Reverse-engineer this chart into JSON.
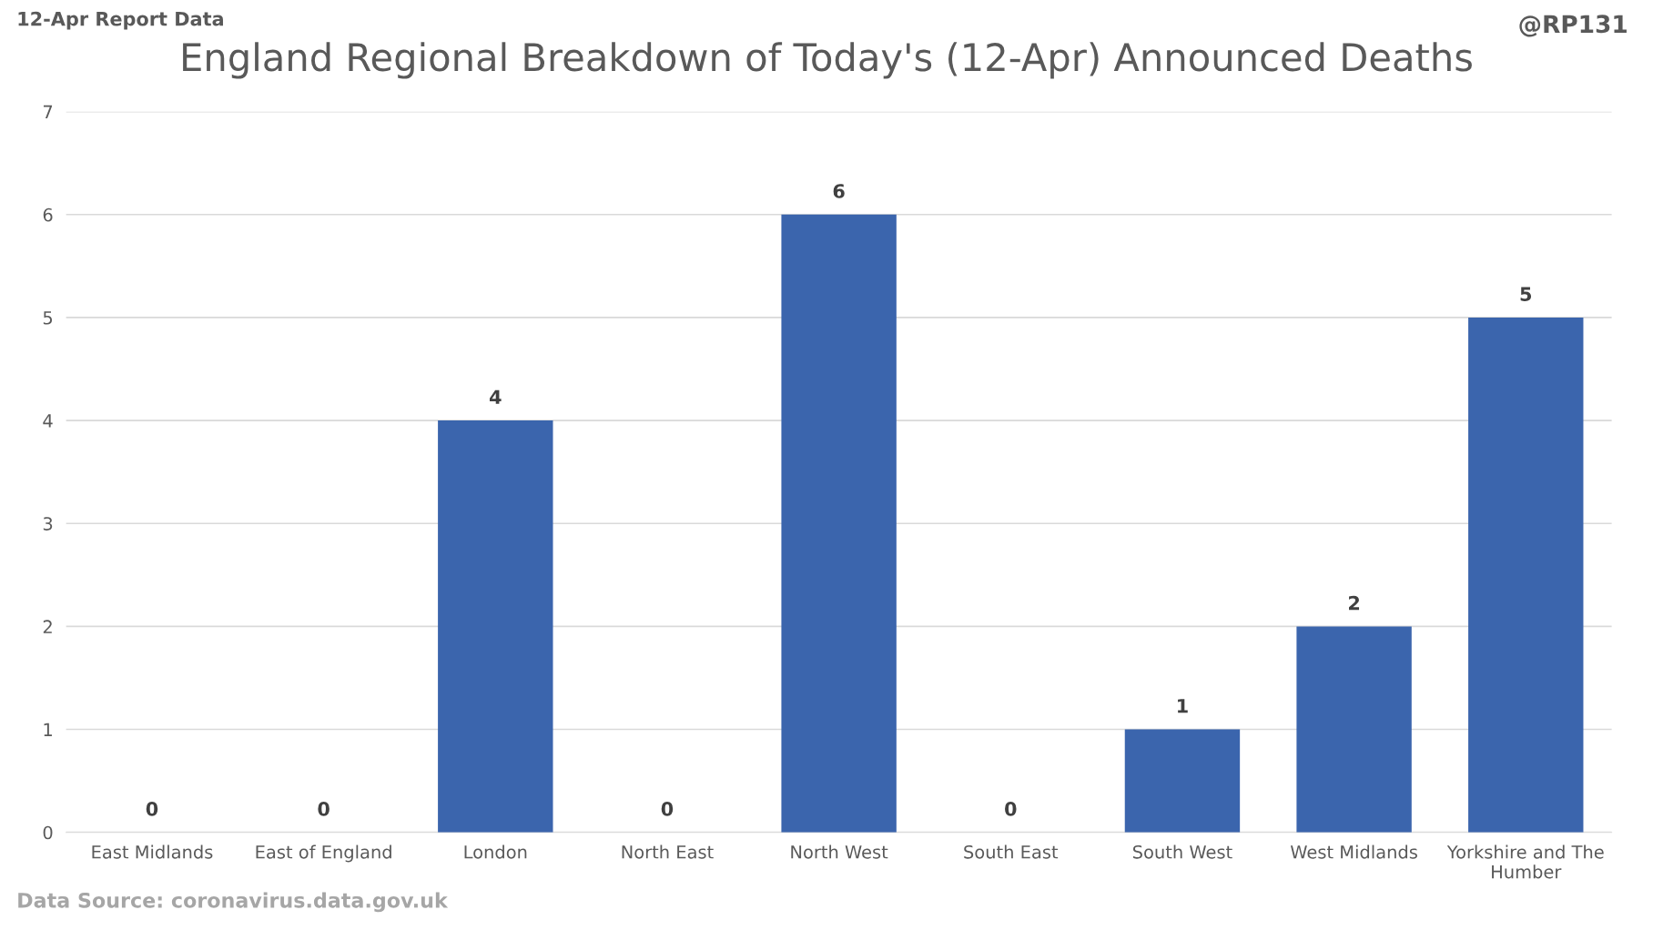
{
  "chart_data": {
    "type": "bar",
    "title": "England Regional Breakdown of Today's (12-Apr) Announced Deaths",
    "categories": [
      "East Midlands",
      "East of England",
      "London",
      "North East",
      "North West",
      "South East",
      "South West",
      "West Midlands",
      "Yorkshire and The\nHumber"
    ],
    "values": [
      0,
      0,
      4,
      0,
      6,
      0,
      1,
      2,
      5
    ],
    "color": "#3b65ad",
    "ylim": [
      0,
      7
    ],
    "yticks": [
      0,
      1,
      2,
      3,
      4,
      5,
      6,
      7
    ],
    "grid": "y",
    "data_labels": true,
    "legend": false,
    "annotations": [
      "12-Apr Report Data",
      "@RP131",
      "Data Source: coronavirus.data.gov.uk"
    ]
  }
}
